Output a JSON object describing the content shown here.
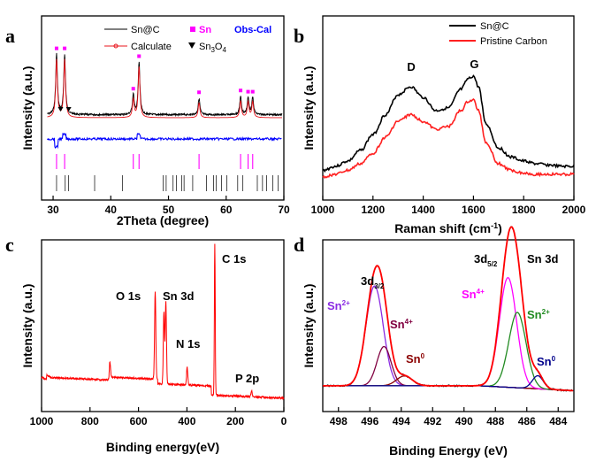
{
  "chart_data": [
    {
      "panel": "a",
      "type": "line",
      "title": "",
      "xlabel": "2Theta (degree)",
      "ylabel": "Intensity (a.u.)",
      "xlim": [
        28,
        70
      ],
      "xticks": [
        30,
        40,
        50,
        60,
        70
      ],
      "legend": [
        {
          "label": "Sn@C",
          "color": "#000000",
          "marker": "line"
        },
        {
          "label": "Sn",
          "color": "#ff00ff",
          "marker": "square"
        },
        {
          "label": "Obs-Cal",
          "color": "#0000ff",
          "marker": "none"
        },
        {
          "label": "Calculate",
          "color": "#e8141c",
          "marker": "line-circle"
        },
        {
          "label": "Sn3O4",
          "label_base": "Sn",
          "label_sub1": "3",
          "label_mid": "O",
          "label_sub2": "4",
          "color": "#000000",
          "marker": "triangle"
        }
      ],
      "series": [
        {
          "name": "Sn@C",
          "color": "#000000",
          "peaks": [
            {
              "x": 30.6,
              "h": 1.0
            },
            {
              "x": 32.0,
              "h": 1.0
            },
            {
              "x": 43.9,
              "h": 0.33
            },
            {
              "x": 44.9,
              "h": 0.87
            },
            {
              "x": 55.3,
              "h": 0.27
            },
            {
              "x": 62.5,
              "h": 0.3
            },
            {
              "x": 63.8,
              "h": 0.28
            },
            {
              "x": 64.6,
              "h": 0.28
            }
          ],
          "baseline": 0.02
        },
        {
          "name": "Calculate",
          "color": "#e8141c",
          "peaks": [
            {
              "x": 30.6,
              "h": 0.96
            },
            {
              "x": 32.0,
              "h": 0.96
            },
            {
              "x": 43.9,
              "h": 0.3
            },
            {
              "x": 44.9,
              "h": 0.84
            },
            {
              "x": 55.3,
              "h": 0.25
            },
            {
              "x": 62.5,
              "h": 0.28
            },
            {
              "x": 63.8,
              "h": 0.26
            },
            {
              "x": 64.6,
              "h": 0.26
            }
          ],
          "baseline": 0.0
        },
        {
          "name": "Obs-Cal",
          "color": "#0000ff",
          "baseline": 0.0
        }
      ],
      "sn_peak_markers": [
        30.6,
        32.0,
        43.9,
        44.9,
        55.3,
        62.5,
        63.8,
        64.6
      ],
      "sn3o4_markers": [
        31.3,
        32.7
      ],
      "sn_reference_ticks": [
        30.6,
        32.0,
        43.9,
        44.9,
        55.3,
        62.5,
        63.8,
        64.6
      ],
      "sn3o4_reference_ticks": [
        30.6,
        32.1,
        32.7,
        37.2,
        42.0,
        49.1,
        49.6,
        50.8,
        51.4,
        52.3,
        52.7,
        54.2,
        56.6,
        57.8,
        58.3,
        59.2,
        60.1,
        62.0,
        62.9,
        65.4,
        66.3,
        67.0,
        68.1,
        69.0
      ]
    },
    {
      "panel": "b",
      "type": "line",
      "title": "",
      "xlabel": "Raman shift (cm-1)",
      "xlabel_main": "Raman shift (cm",
      "xlabel_sup": "-1",
      "xlabel_end": ")",
      "ylabel": "Intensity (a.u.)",
      "xlim": [
        1000,
        2000
      ],
      "xticks": [
        1000,
        1200,
        1400,
        1600,
        1800,
        2000
      ],
      "annotations": [
        {
          "text": "D",
          "x": 1350
        },
        {
          "text": "G",
          "x": 1600
        }
      ],
      "series": [
        {
          "name": "Sn@C",
          "color": "#000000",
          "x": [
            1000,
            1050,
            1100,
            1150,
            1200,
            1250,
            1300,
            1350,
            1400,
            1450,
            1500,
            1550,
            1580,
            1600,
            1620,
            1650,
            1700,
            1750,
            1800,
            1850,
            1900,
            1950,
            2000
          ],
          "y": [
            0.05,
            0.08,
            0.12,
            0.2,
            0.32,
            0.47,
            0.62,
            0.68,
            0.6,
            0.5,
            0.52,
            0.66,
            0.74,
            0.76,
            0.68,
            0.4,
            0.22,
            0.15,
            0.12,
            0.1,
            0.09,
            0.08,
            0.08
          ]
        },
        {
          "name": "Pristine Carbon",
          "color": "#ff2020",
          "x": [
            1000,
            1050,
            1100,
            1150,
            1200,
            1250,
            1300,
            1350,
            1400,
            1450,
            1500,
            1550,
            1580,
            1600,
            1620,
            1650,
            1700,
            1750,
            1800,
            1850,
            1900,
            1950,
            2000
          ],
          "y": [
            0.0,
            0.02,
            0.05,
            0.1,
            0.18,
            0.3,
            0.42,
            0.47,
            0.42,
            0.36,
            0.38,
            0.5,
            0.57,
            0.58,
            0.5,
            0.26,
            0.1,
            0.05,
            0.03,
            0.02,
            0.02,
            0.02,
            0.02
          ]
        }
      ]
    },
    {
      "panel": "c",
      "type": "line",
      "title": "",
      "xlabel": "Binding energy(eV)",
      "ylabel": "Intensity (a.u.)",
      "xlim": [
        1000,
        0
      ],
      "xticks": [
        1000,
        800,
        600,
        400,
        200,
        0
      ],
      "annotations": [
        {
          "text": "O 1s",
          "x": 531
        },
        {
          "text": "Sn 3d",
          "x": 487
        },
        {
          "text": "N 1s",
          "x": 399
        },
        {
          "text": "C 1s",
          "x": 285
        },
        {
          "text": "P 2p",
          "x": 133
        }
      ],
      "series": [
        {
          "name": "survey",
          "color": "#ff0000",
          "peaks": [
            {
              "x": 531,
              "h": 0.58
            },
            {
              "x": 495,
              "h": 0.48
            },
            {
              "x": 487,
              "h": 0.55
            },
            {
              "x": 399,
              "h": 0.12
            },
            {
              "x": 285,
              "h": 1.0
            },
            {
              "x": 133,
              "h": 0.04
            },
            {
              "x": 718,
              "h": 0.1
            }
          ]
        }
      ]
    },
    {
      "panel": "d",
      "type": "line",
      "title": "Sn 3d",
      "xlabel": "Binding Energy (eV)",
      "ylabel": "Intensity (a.u.)",
      "xlim": [
        499,
        483
      ],
      "xticks": [
        498,
        496,
        494,
        492,
        490,
        488,
        486,
        484
      ],
      "annotations": [
        {
          "text": "3d3/2",
          "base": "3d",
          "sub": "3/2",
          "color": "#000000"
        },
        {
          "text": "3d5/2",
          "base": "3d",
          "sub": "5/2",
          "color": "#000000"
        },
        {
          "text": "Sn2+",
          "base": "Sn",
          "sup": "2+",
          "color": "#8a2be2"
        },
        {
          "text": "Sn4+",
          "base": "Sn",
          "sup": "4+",
          "color": "#800040"
        },
        {
          "text": "Sn0",
          "base": "Sn",
          "sup": "0",
          "color": "#8b0000"
        },
        {
          "text": "Sn4+",
          "base": "Sn",
          "sup": "4+",
          "color": "#ff00ff"
        },
        {
          "text": "Sn2+",
          "base": "Sn",
          "sup": "2+",
          "color": "#228b22"
        },
        {
          "text": "Sn0",
          "base": "Sn",
          "sup": "0",
          "color": "#00008b"
        }
      ],
      "series": [
        {
          "name": "envelope",
          "color": "#ff0000"
        },
        {
          "name": "Sn2+ 3d3/2",
          "color": "#8a2be2",
          "center": 495.7,
          "h": 0.61,
          "w": 0.55
        },
        {
          "name": "Sn4+ 3d3/2",
          "color": "#800040",
          "center": 495.1,
          "h": 0.24,
          "w": 0.45
        },
        {
          "name": "Sn0 3d3/2",
          "color": "#8b0000",
          "center": 493.8,
          "h": 0.06,
          "w": 0.5
        },
        {
          "name": "Sn4+ 3d5/2",
          "color": "#ff00ff",
          "center": 487.2,
          "h": 0.67,
          "w": 0.55
        },
        {
          "name": "Sn2+ 3d5/2",
          "color": "#228b22",
          "center": 486.6,
          "h": 0.46,
          "w": 0.55
        },
        {
          "name": "Sn0 3d5/2",
          "color": "#00008b",
          "center": 485.3,
          "h": 0.08,
          "w": 0.35
        },
        {
          "name": "background",
          "color": "#8b4513"
        }
      ]
    }
  ],
  "panels": {
    "a": "a",
    "b": "b",
    "c": "c",
    "d": "d"
  },
  "axis_common": {
    "ylabel": "Intensity (a.u.)"
  }
}
